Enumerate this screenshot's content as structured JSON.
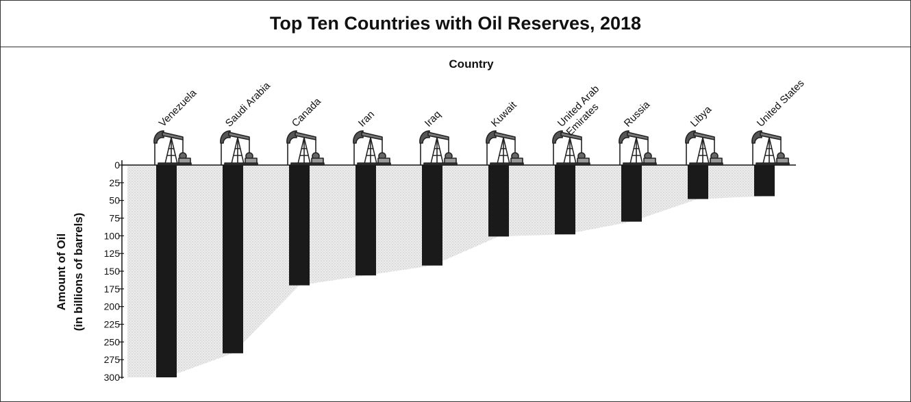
{
  "chart_data": {
    "type": "bar",
    "title": "Top Ten Countries with Oil Reserves, 2018",
    "xlabel": "Country",
    "ylabel_line1": "Amount of Oil",
    "ylabel_line2": "(in billions of barrels)",
    "orientation": "inverted-vertical",
    "ylim": [
      0,
      300
    ],
    "yticks": [
      0,
      25,
      50,
      75,
      100,
      125,
      150,
      175,
      200,
      225,
      250,
      275,
      300
    ],
    "categories": [
      "Venezuela",
      "Saudi Arabia",
      "Canada",
      "Iran",
      "Iraq",
      "Kuwait",
      "United Arab Emirates",
      "Russia",
      "Libya",
      "United States"
    ],
    "category_label_lines": [
      [
        "Venezuela"
      ],
      [
        "Saudi Arabia"
      ],
      [
        "Canada"
      ],
      [
        "Iran"
      ],
      [
        "Iraq"
      ],
      [
        "Kuwait"
      ],
      [
        "United Arab",
        "Emirates"
      ],
      [
        "Russia"
      ],
      [
        "Libya"
      ],
      [
        "United States"
      ]
    ],
    "values": [
      303,
      266,
      170,
      156,
      142,
      101,
      98,
      80,
      48,
      44
    ],
    "icon": "oil-pump-jack-icon",
    "colors": {
      "bar": "#1a1a1a",
      "area": "#e6e6e6",
      "axis": "#111111"
    }
  }
}
